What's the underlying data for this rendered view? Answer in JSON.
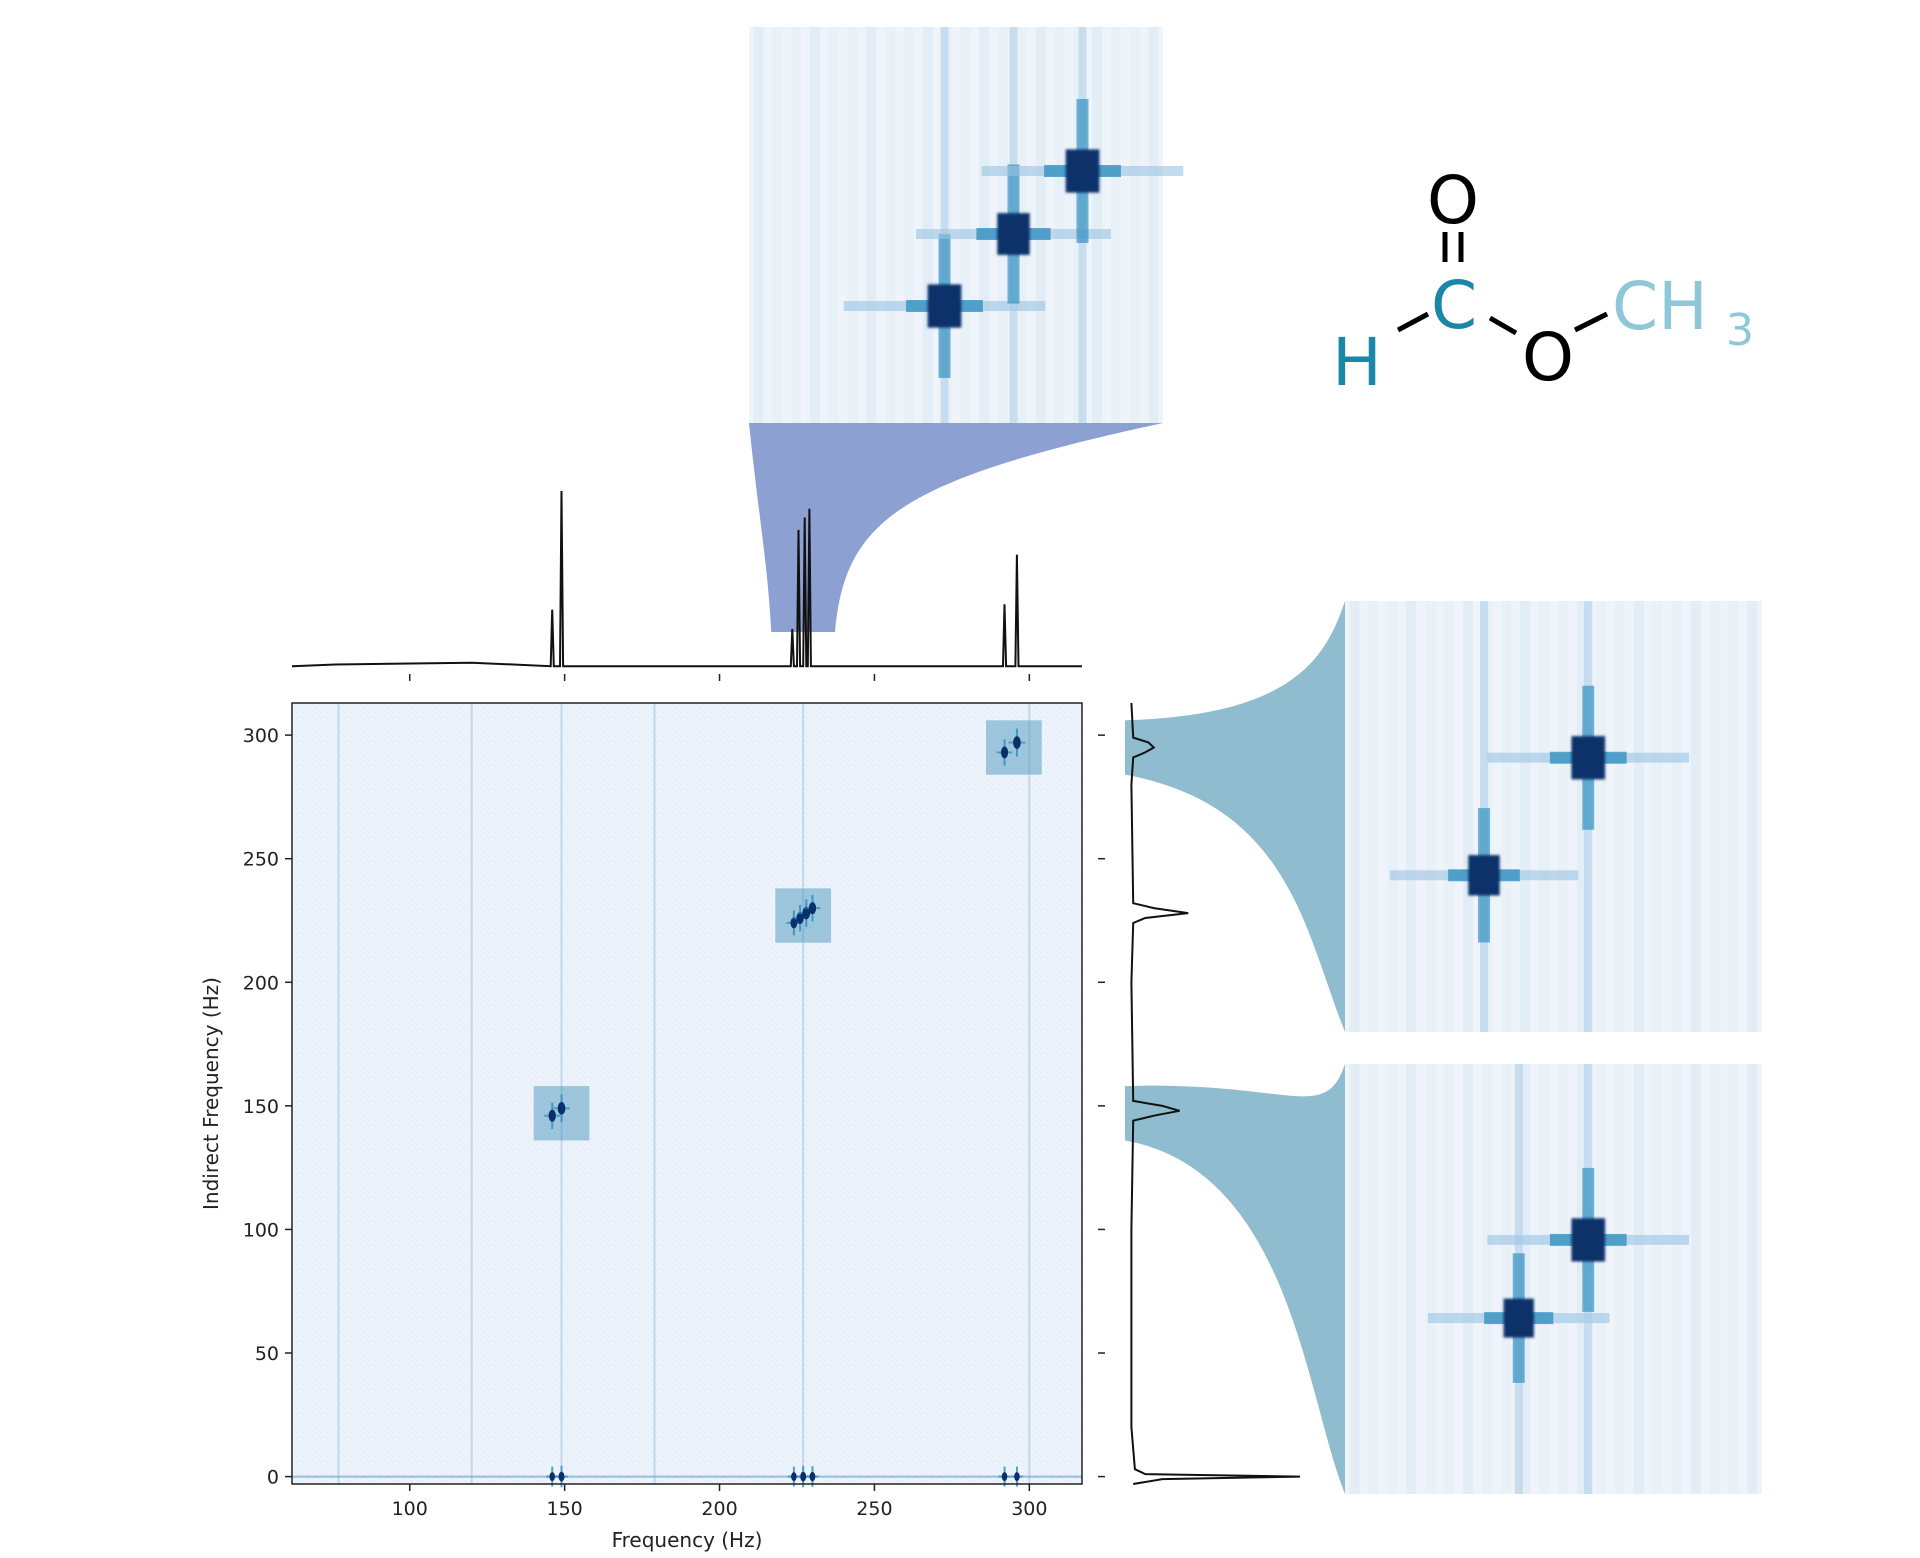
{
  "chart_data": {
    "type": "heatmap",
    "title": "",
    "xlabel": "Frequency (Hz)",
    "ylabel": "Indirect Frequency (Hz)",
    "xlim": [
      62,
      317
    ],
    "ylim": [
      -3,
      313
    ],
    "xticks": [
      "100",
      "150",
      "200",
      "250",
      "300"
    ],
    "yticks": [
      "0",
      "50",
      "100",
      "150",
      "200",
      "250",
      "300"
    ],
    "grid": false,
    "colors": {
      "map_dark": "#08306b",
      "map_mid": "#2b8cbe",
      "map_light": "#e7f0f8",
      "zoom_fill_top": "#8da0d2",
      "zoom_fill_right": "#8fbdcf"
    },
    "peaks": [
      {
        "x": 146,
        "y": 0,
        "intensity": 0.5
      },
      {
        "x": 149,
        "y": 0,
        "intensity": 0.6
      },
      {
        "x": 224,
        "y": 0,
        "intensity": 0.5
      },
      {
        "x": 227,
        "y": 0,
        "intensity": 0.6
      },
      {
        "x": 230,
        "y": 0,
        "intensity": 0.55
      },
      {
        "x": 292,
        "y": 0,
        "intensity": 0.5
      },
      {
        "x": 296,
        "y": 0,
        "intensity": 0.5
      },
      {
        "x": 146,
        "y": 146,
        "intensity": 0.9
      },
      {
        "x": 149,
        "y": 149,
        "intensity": 1.0
      },
      {
        "x": 224,
        "y": 224,
        "intensity": 0.8
      },
      {
        "x": 226,
        "y": 226,
        "intensity": 0.9
      },
      {
        "x": 228,
        "y": 228,
        "intensity": 1.0
      },
      {
        "x": 230,
        "y": 230,
        "intensity": 0.9
      },
      {
        "x": 292,
        "y": 293,
        "intensity": 0.9
      },
      {
        "x": 296,
        "y": 297,
        "intensity": 1.0
      }
    ],
    "streaks_x": [
      77,
      120,
      149,
      179,
      227,
      300
    ],
    "highlight_boxes": [
      {
        "x0": 140,
        "x1": 158,
        "y0": 136,
        "y1": 158
      },
      {
        "x0": 218,
        "x1": 236,
        "y0": 216,
        "y1": 238
      },
      {
        "x0": 286,
        "x1": 304,
        "y0": 284,
        "y1": 306
      }
    ],
    "projection_top": {
      "x": [
        62,
        76,
        120,
        145.5,
        146,
        146.5,
        148.5,
        149,
        149.5,
        223,
        223.5,
        224,
        225,
        225.5,
        226,
        227,
        227.5,
        228,
        228.5,
        229,
        229.5,
        230,
        291.5,
        292,
        292.5,
        295.5,
        296,
        296.5,
        317
      ],
      "y": [
        0.01,
        0.02,
        0.03,
        0.01,
        0.33,
        0.01,
        0.01,
        1.0,
        0.01,
        0.01,
        0.22,
        0.01,
        0.01,
        0.78,
        0.01,
        0.01,
        0.85,
        0.01,
        0.01,
        0.9,
        0.01,
        0.01,
        0.01,
        0.36,
        0.01,
        0.01,
        0.64,
        0.01,
        0.01
      ]
    },
    "projection_right": {
      "y": [
        -3,
        -1,
        0,
        1,
        3,
        20,
        50,
        100,
        144,
        146,
        148,
        150,
        152,
        200,
        224,
        226,
        228,
        230,
        232,
        280,
        291,
        293,
        295,
        297,
        299,
        313
      ],
      "x": [
        0.03,
        0.2,
        1.0,
        0.1,
        0.04,
        0.02,
        0.02,
        0.02,
        0.03,
        0.15,
        0.3,
        0.2,
        0.03,
        0.02,
        0.03,
        0.1,
        0.35,
        0.15,
        0.03,
        0.02,
        0.03,
        0.1,
        0.15,
        0.12,
        0.03,
        0.02
      ]
    },
    "zoom_top": {
      "xlim": [
        218,
        236
      ],
      "ylim": [
        216,
        238
      ],
      "peaks": [
        {
          "x": 226.5,
          "y": 222.5,
          "intensity": 1.0
        },
        {
          "x": 229.5,
          "y": 226.5,
          "intensity": 0.95
        },
        {
          "x": 232.5,
          "y": 230,
          "intensity": 1.0
        }
      ]
    },
    "zoom_right_upper": {
      "xlim": [
        286,
        304
      ],
      "ylim": [
        284,
        306
      ],
      "peaks": [
        {
          "x": 292,
          "y": 292,
          "intensity": 0.9
        },
        {
          "x": 296.5,
          "y": 298,
          "intensity": 1.0
        }
      ]
    },
    "zoom_right_lower": {
      "xlim": [
        140,
        158
      ],
      "ylim": [
        136,
        158
      ],
      "peaks": [
        {
          "x": 147.5,
          "y": 145,
          "intensity": 0.85
        },
        {
          "x": 150.5,
          "y": 149,
          "intensity": 1.0
        }
      ]
    }
  },
  "molecule": {
    "atoms": [
      {
        "id": "O1",
        "label": "O",
        "color": "#000000"
      },
      {
        "id": "C",
        "label": "C",
        "color": "#1a86a8"
      },
      {
        "id": "H",
        "label": "H",
        "color": "#1a86a8"
      },
      {
        "id": "O2",
        "label": "O",
        "color": "#000000"
      },
      {
        "id": "CH",
        "label": "CH",
        "color": "#8ec7d8"
      },
      {
        "id": "sub3",
        "label": "3",
        "color": "#8ec7d8"
      }
    ]
  }
}
